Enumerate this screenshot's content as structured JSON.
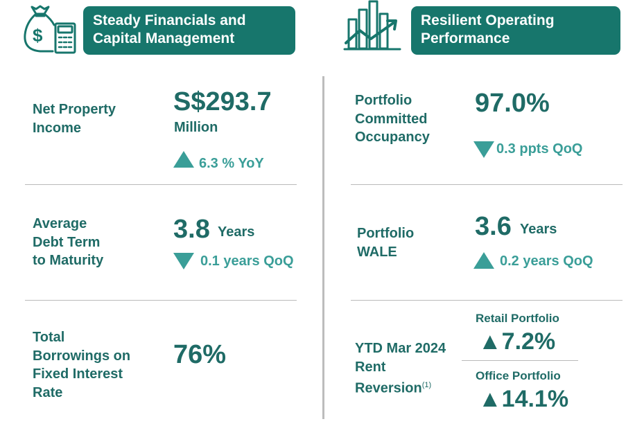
{
  "left_section": {
    "title": "Steady Financials and\nCapital Management",
    "icon": "money-bag-calculator-icon",
    "metrics": [
      {
        "label": "Net Property\nIncome",
        "value": "S$293.7",
        "unit": "Million",
        "direction": "up",
        "delta": "6.3 % YoY"
      },
      {
        "label": "Average\nDebt Term\nto Maturity",
        "value": "3.8",
        "unit": "Years",
        "direction": "down",
        "delta": "0.1 years QoQ"
      },
      {
        "label": "Total\nBorrowings on\nFixed Interest\nRate",
        "value": "76%"
      }
    ]
  },
  "right_section": {
    "title": "Resilient Operating\nPerformance",
    "icon": "bar-chart-growth-arrow-icon",
    "metrics": [
      {
        "label": "Portfolio\nCommitted\nOccupancy",
        "value": "97.0%",
        "direction": "down",
        "delta": "0.3 ppts QoQ"
      },
      {
        "label": "Portfolio\nWALE",
        "value": "3.6",
        "unit": "Years",
        "direction": "up",
        "delta": "0.2 years QoQ"
      },
      {
        "label": "YTD Mar 2024\nRent\nReversion",
        "footnote": "(1)",
        "items": [
          {
            "name": "Retail Portfolio",
            "value": "7.2%",
            "direction": "up"
          },
          {
            "name": "Office Portfolio",
            "value": "14.1%",
            "direction": "up"
          }
        ]
      }
    ]
  },
  "colors": {
    "brand_green": "#17766c",
    "accent_teal": "#3a9e98",
    "text_green": "#1f6b66",
    "divider": "#b9b9b9"
  }
}
